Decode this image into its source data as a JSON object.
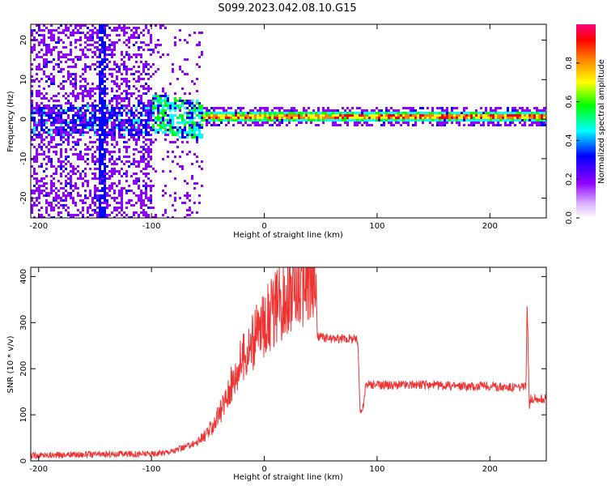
{
  "title": "S099.2023.042.08.10.G15",
  "chart_data": [
    {
      "type": "heatmap",
      "xlabel": "Height of straight line (km)",
      "ylabel": "Frequency (Hz)",
      "xlim": [
        -207,
        250
      ],
      "ylim": [
        -25,
        24
      ],
      "xticks": [
        -200,
        -100,
        0,
        100,
        200
      ],
      "xtick_labels": [
        "-200",
        "-100",
        "0",
        "100",
        "200"
      ],
      "yticks": [
        -20,
        -10,
        0,
        10,
        20
      ],
      "ytick_labels": [
        "-20",
        "-10",
        "0",
        "10",
        "20"
      ],
      "grid": false,
      "colorbar": {
        "label": "Normalized spectral amplitude",
        "range": [
          0,
          1
        ],
        "ticks": [
          0.0,
          0.2,
          0.4,
          0.6,
          0.8
        ],
        "tick_labels": [
          "0.0",
          "0.2",
          "0.4",
          "0.6",
          "0.8"
        ],
        "colors": [
          "#ffffff",
          "#8f00ff",
          "#0000ff",
          "#00ffff",
          "#00ff00",
          "#ffff00",
          "#ff8000",
          "#ff0000",
          "#ff0080"
        ]
      },
      "features": {
        "carrier_line": {
          "x_start": -55,
          "x_end": 250,
          "frequency": 1,
          "amplitude": 0.75
        },
        "diffuse_region": {
          "x_start": -207,
          "x_end": -100,
          "f_min": -25,
          "f_max": 24
        },
        "transition_region": {
          "x_start": -100,
          "x_end": -55
        }
      }
    },
    {
      "type": "line",
      "xlabel": "Height of straight line (km)",
      "ylabel": "SNR (10 * v/v)",
      "xlim": [
        -207,
        250
      ],
      "ylim": [
        0,
        420
      ],
      "xticks": [
        -200,
        -100,
        0,
        100,
        200
      ],
      "xtick_labels": [
        "-200",
        "-100",
        "0",
        "100",
        "200"
      ],
      "yticks": [
        0,
        100,
        200,
        300,
        400
      ],
      "ytick_labels": [
        "0",
        "100",
        "200",
        "300",
        "400"
      ],
      "grid": false,
      "series": [
        {
          "color": "#ee3333",
          "x": [
            -207,
            -180,
            -150,
            -120,
            -100,
            -90,
            -80,
            -70,
            -60,
            -50,
            -40,
            -30,
            -20,
            -10,
            0,
            10,
            20,
            30,
            40,
            46,
            47,
            60,
            70,
            80,
            83,
            85,
            87,
            89,
            90,
            100,
            120,
            140,
            160,
            180,
            200,
            220,
            232,
            233,
            235,
            236,
            240,
            250
          ],
          "y": [
            12,
            13,
            14,
            15,
            15,
            18,
            22,
            30,
            40,
            60,
            100,
            160,
            220,
            260,
            300,
            330,
            360,
            375,
            385,
            390,
            270,
            265,
            265,
            265,
            260,
            110,
            110,
            140,
            165,
            165,
            165,
            165,
            163,
            162,
            162,
            160,
            160,
            340,
            120,
            135,
            135,
            135
          ]
        }
      ]
    }
  ]
}
